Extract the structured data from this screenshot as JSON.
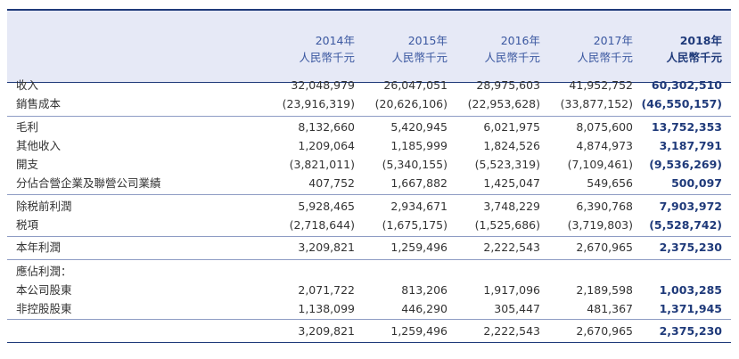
{
  "columns": [
    {
      "year": "2014年",
      "unit": "人民幣千元",
      "bold": false
    },
    {
      "year": "2015年",
      "unit": "人民幣千元",
      "bold": false
    },
    {
      "year": "2016年",
      "unit": "人民幣千元",
      "bold": false
    },
    {
      "year": "2017年",
      "unit": "人民幣千元",
      "bold": false
    },
    {
      "year": "2018年",
      "unit": "人民幣千元",
      "bold": true
    }
  ],
  "rows": [
    {
      "label": "收入",
      "values": [
        "32,048,979",
        "26,047,051",
        "28,975,603",
        "41,952,752",
        "60,302,510"
      ]
    },
    {
      "label": "銷售成本",
      "values": [
        "(23,916,319)",
        "(20,626,106)",
        "(22,953,628)",
        "(33,877,152)",
        "(46,550,157)"
      ]
    },
    {
      "label": "毛利",
      "values": [
        "8,132,660",
        "5,420,945",
        "6,021,975",
        "8,075,600",
        "13,752,353"
      ]
    },
    {
      "label": "其他收入",
      "values": [
        "1,209,064",
        "1,185,999",
        "1,824,526",
        "4,874,973",
        "3,187,791"
      ]
    },
    {
      "label": "開支",
      "values": [
        "(3,821,011)",
        "(5,340,155)",
        "(5,523,319)",
        "(7,109,461)",
        "(9,536,269)"
      ]
    },
    {
      "label": "分佔合營企業及聯營公司業績",
      "values": [
        "407,752",
        "1,667,882",
        "1,425,047",
        "549,656",
        "500,097"
      ]
    },
    {
      "label": "除税前利潤",
      "values": [
        "5,928,465",
        "2,934,671",
        "3,748,229",
        "6,390,768",
        "7,903,972"
      ]
    },
    {
      "label": "税項",
      "values": [
        "(2,718,644)",
        "(1,675,175)",
        "(1,525,686)",
        "(3,719,803)",
        "(5,528,742)"
      ]
    },
    {
      "label": "本年利潤",
      "values": [
        "3,209,821",
        "1,259,496",
        "2,222,543",
        "2,670,965",
        "2,375,230"
      ]
    },
    {
      "label": "應佔利潤：",
      "values": [
        "",
        "",
        "",
        "",
        ""
      ]
    },
    {
      "label": "本公司股東",
      "values": [
        "2,071,722",
        "813,206",
        "1,917,096",
        "2,189,598",
        "1,003,285"
      ]
    },
    {
      "label": "非控股股東",
      "values": [
        "1,138,099",
        "446,290",
        "305,447",
        "481,367",
        "1,371,945"
      ]
    },
    {
      "label": "",
      "values": [
        "3,209,821",
        "1,259,496",
        "2,222,543",
        "2,670,965",
        "2,375,230"
      ]
    }
  ]
}
